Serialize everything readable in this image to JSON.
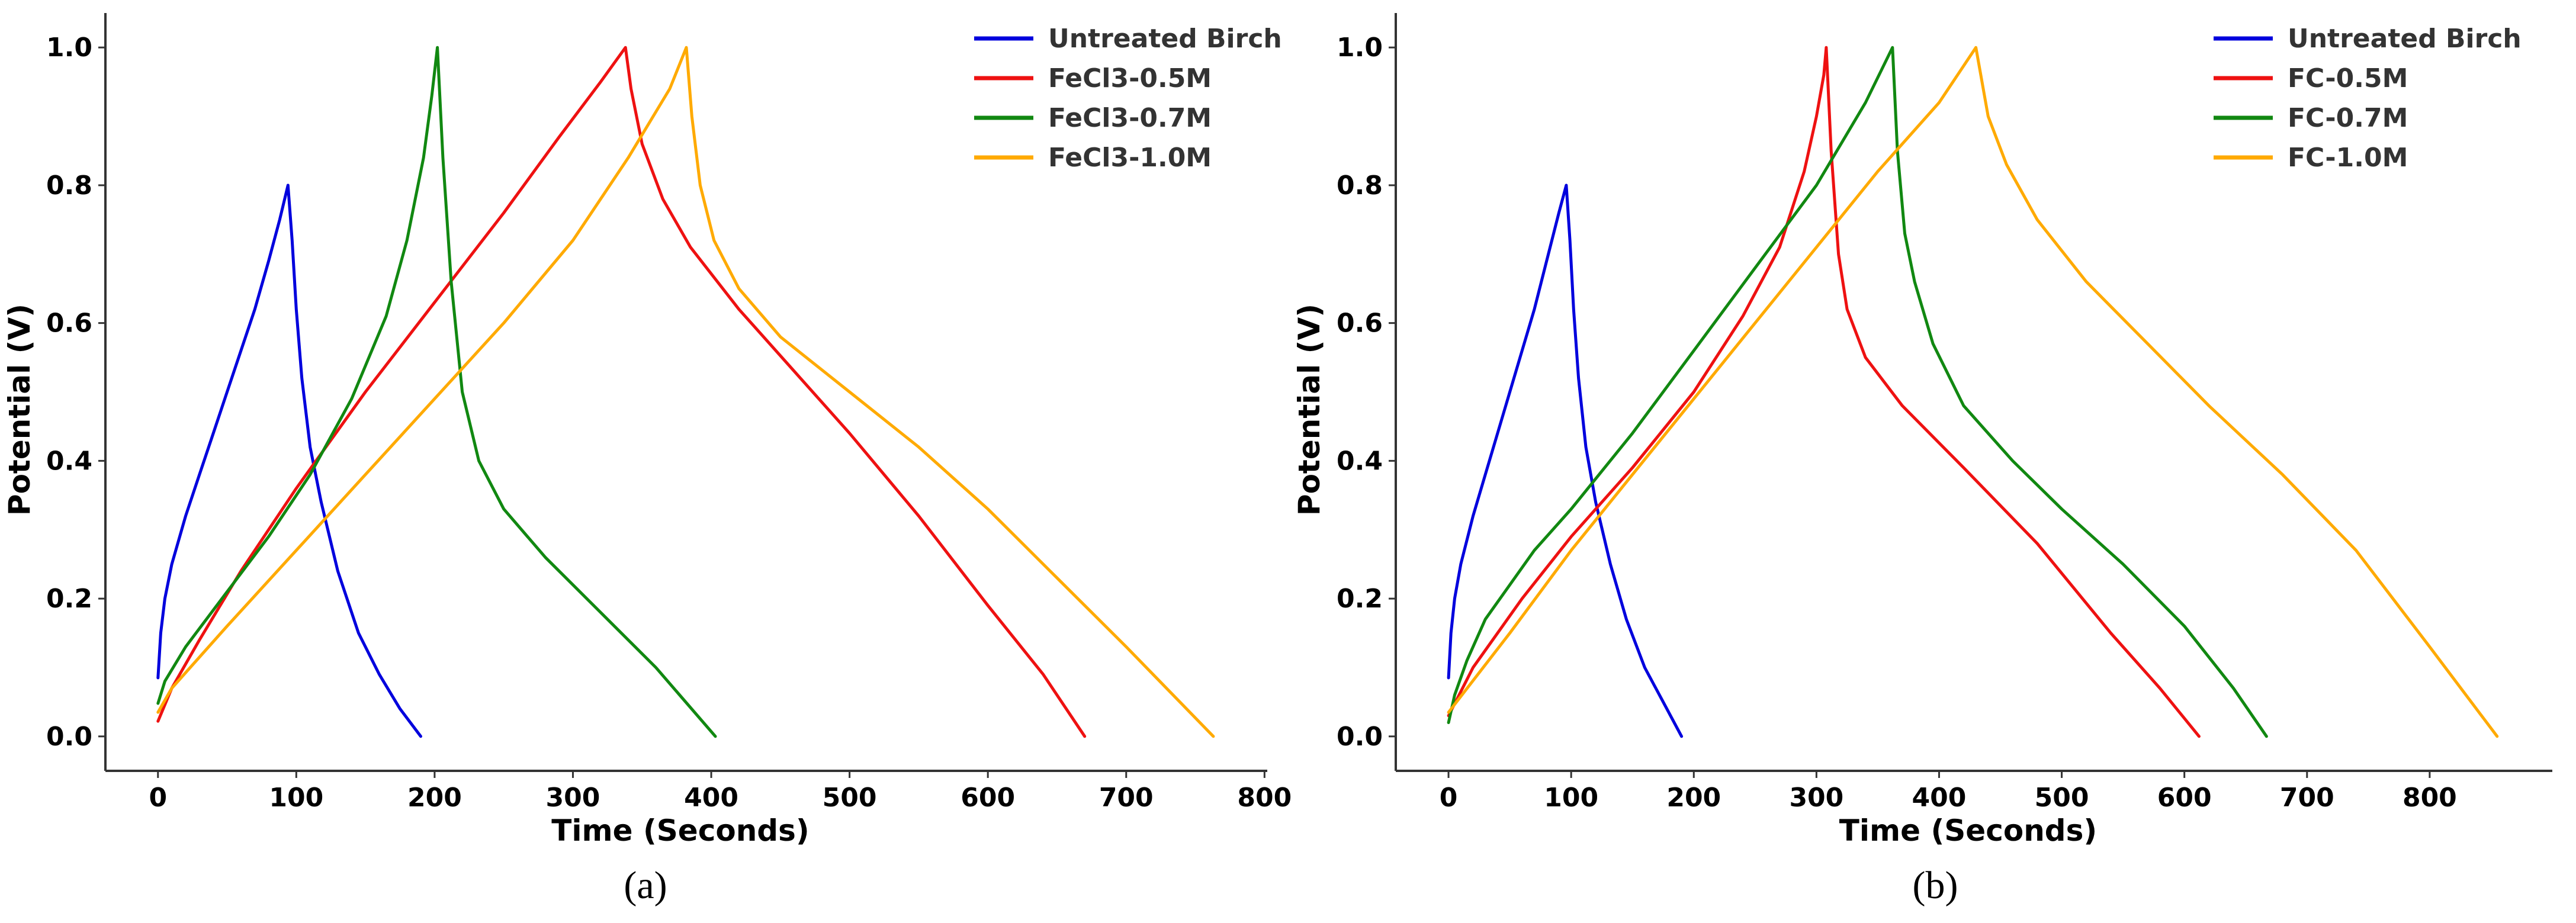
{
  "chart_data": [
    {
      "type": "line",
      "panel_label": "(a)",
      "xlabel": "Time (Seconds)",
      "ylabel": "Potential (V)",
      "xlim": [
        -38,
        802
      ],
      "ylim": [
        -0.05,
        1.05
      ],
      "x_ticks": [
        0,
        100,
        200,
        300,
        400,
        500,
        600,
        700,
        800
      ],
      "y_ticks": [
        0.0,
        0.2,
        0.4,
        0.6,
        0.8,
        1.0
      ],
      "x_tick_labels": [
        "0",
        "100",
        "200",
        "300",
        "400",
        "500",
        "600",
        "700",
        "800"
      ],
      "y_tick_labels": [
        "0.0",
        "0.2",
        "0.4",
        "0.6",
        "0.8",
        "1.0"
      ],
      "grid": false,
      "legend_position": "top-right",
      "series": [
        {
          "name": "Untreated Birch",
          "color": "#0000dd",
          "points": [
            [
              0,
              0.085
            ],
            [
              2,
              0.15
            ],
            [
              5,
              0.2
            ],
            [
              10,
              0.25
            ],
            [
              20,
              0.32
            ],
            [
              30,
              0.38
            ],
            [
              40,
              0.44
            ],
            [
              50,
              0.5
            ],
            [
              60,
              0.56
            ],
            [
              70,
              0.62
            ],
            [
              80,
              0.69
            ],
            [
              88,
              0.75
            ],
            [
              94,
              0.8
            ],
            [
              97,
              0.72
            ],
            [
              100,
              0.62
            ],
            [
              104,
              0.52
            ],
            [
              110,
              0.42
            ],
            [
              118,
              0.34
            ],
            [
              130,
              0.24
            ],
            [
              145,
              0.15
            ],
            [
              160,
              0.09
            ],
            [
              175,
              0.04
            ],
            [
              190,
              0.0
            ]
          ]
        },
        {
          "name": "FeCl3-0.5M",
          "color": "#ee1111",
          "points": [
            [
              0,
              0.022
            ],
            [
              10,
              0.07
            ],
            [
              30,
              0.14
            ],
            [
              60,
              0.24
            ],
            [
              100,
              0.36
            ],
            [
              150,
              0.5
            ],
            [
              200,
              0.63
            ],
            [
              250,
              0.76
            ],
            [
              290,
              0.87
            ],
            [
              320,
              0.95
            ],
            [
              338,
              1.0
            ],
            [
              342,
              0.94
            ],
            [
              350,
              0.86
            ],
            [
              365,
              0.78
            ],
            [
              385,
              0.71
            ],
            [
              420,
              0.62
            ],
            [
              460,
              0.53
            ],
            [
              500,
              0.44
            ],
            [
              550,
              0.32
            ],
            [
              600,
              0.19
            ],
            [
              640,
              0.09
            ],
            [
              670,
              0.0
            ]
          ]
        },
        {
          "name": "FeCl3-0.7M",
          "color": "#118811",
          "points": [
            [
              0,
              0.048
            ],
            [
              5,
              0.08
            ],
            [
              20,
              0.13
            ],
            [
              50,
              0.21
            ],
            [
              80,
              0.29
            ],
            [
              110,
              0.38
            ],
            [
              140,
              0.49
            ],
            [
              165,
              0.61
            ],
            [
              180,
              0.72
            ],
            [
              192,
              0.84
            ],
            [
              198,
              0.93
            ],
            [
              202,
              1.0
            ],
            [
              206,
              0.84
            ],
            [
              212,
              0.66
            ],
            [
              220,
              0.5
            ],
            [
              232,
              0.4
            ],
            [
              250,
              0.33
            ],
            [
              280,
              0.26
            ],
            [
              320,
              0.18
            ],
            [
              360,
              0.1
            ],
            [
              403,
              0.0
            ]
          ]
        },
        {
          "name": "FeCl3-1.0M",
          "color": "#ffaa00",
          "points": [
            [
              0,
              0.035
            ],
            [
              10,
              0.07
            ],
            [
              50,
              0.16
            ],
            [
              100,
              0.27
            ],
            [
              150,
              0.38
            ],
            [
              200,
              0.49
            ],
            [
              250,
              0.6
            ],
            [
              300,
              0.72
            ],
            [
              340,
              0.84
            ],
            [
              370,
              0.94
            ],
            [
              382,
              1.0
            ],
            [
              386,
              0.9
            ],
            [
              392,
              0.8
            ],
            [
              402,
              0.72
            ],
            [
              420,
              0.65
            ],
            [
              450,
              0.58
            ],
            [
              500,
              0.5
            ],
            [
              550,
              0.42
            ],
            [
              600,
              0.33
            ],
            [
              650,
              0.23
            ],
            [
              700,
              0.13
            ],
            [
              763,
              0.0
            ]
          ]
        }
      ]
    },
    {
      "type": "line",
      "panel_label": "(b)",
      "xlabel": "Time (Seconds)",
      "ylabel": "Potential (V)",
      "xlim": [
        -43,
        900
      ],
      "ylim": [
        -0.05,
        1.05
      ],
      "x_ticks": [
        0,
        100,
        200,
        300,
        400,
        500,
        600,
        700,
        800
      ],
      "y_ticks": [
        0.0,
        0.2,
        0.4,
        0.6,
        0.8,
        1.0
      ],
      "x_tick_labels": [
        "0",
        "100",
        "200",
        "300",
        "400",
        "500",
        "600",
        "700",
        "800"
      ],
      "y_tick_labels": [
        "0.0",
        "0.2",
        "0.4",
        "0.6",
        "0.8",
        "1.0"
      ],
      "grid": false,
      "legend_position": "top-right",
      "series": [
        {
          "name": "Untreated Birch",
          "color": "#0000dd",
          "points": [
            [
              0,
              0.085
            ],
            [
              2,
              0.15
            ],
            [
              5,
              0.2
            ],
            [
              10,
              0.25
            ],
            [
              20,
              0.32
            ],
            [
              30,
              0.38
            ],
            [
              40,
              0.44
            ],
            [
              50,
              0.5
            ],
            [
              60,
              0.56
            ],
            [
              70,
              0.62
            ],
            [
              80,
              0.69
            ],
            [
              90,
              0.76
            ],
            [
              96,
              0.8
            ],
            [
              99,
              0.72
            ],
            [
              102,
              0.62
            ],
            [
              106,
              0.52
            ],
            [
              112,
              0.42
            ],
            [
              120,
              0.34
            ],
            [
              132,
              0.25
            ],
            [
              145,
              0.17
            ],
            [
              160,
              0.1
            ],
            [
              175,
              0.05
            ],
            [
              190,
              0.0
            ]
          ]
        },
        {
          "name": "FC-0.5M",
          "color": "#ee1111",
          "points": [
            [
              0,
              0.03
            ],
            [
              20,
              0.1
            ],
            [
              60,
              0.2
            ],
            [
              100,
              0.29
            ],
            [
              150,
              0.39
            ],
            [
              200,
              0.5
            ],
            [
              240,
              0.61
            ],
            [
              270,
              0.71
            ],
            [
              290,
              0.82
            ],
            [
              300,
              0.9
            ],
            [
              306,
              0.96
            ],
            [
              308,
              1.0
            ],
            [
              312,
              0.85
            ],
            [
              318,
              0.7
            ],
            [
              325,
              0.62
            ],
            [
              340,
              0.55
            ],
            [
              370,
              0.48
            ],
            [
              420,
              0.39
            ],
            [
              480,
              0.28
            ],
            [
              540,
              0.15
            ],
            [
              580,
              0.07
            ],
            [
              612,
              0.0
            ]
          ]
        },
        {
          "name": "FC-0.7M",
          "color": "#118811",
          "points": [
            [
              0,
              0.02
            ],
            [
              5,
              0.06
            ],
            [
              15,
              0.11
            ],
            [
              30,
              0.17
            ],
            [
              50,
              0.22
            ],
            [
              70,
              0.27
            ],
            [
              100,
              0.33
            ],
            [
              150,
              0.44
            ],
            [
              200,
              0.56
            ],
            [
              250,
              0.68
            ],
            [
              300,
              0.8
            ],
            [
              340,
              0.92
            ],
            [
              362,
              1.0
            ],
            [
              366,
              0.85
            ],
            [
              372,
              0.73
            ],
            [
              380,
              0.66
            ],
            [
              395,
              0.57
            ],
            [
              420,
              0.48
            ],
            [
              460,
              0.4
            ],
            [
              500,
              0.33
            ],
            [
              550,
              0.25
            ],
            [
              600,
              0.16
            ],
            [
              640,
              0.07
            ],
            [
              667,
              0.0
            ]
          ]
        },
        {
          "name": "FC-1.0M",
          "color": "#ffaa00",
          "points": [
            [
              0,
              0.035
            ],
            [
              50,
              0.15
            ],
            [
              100,
              0.27
            ],
            [
              150,
              0.38
            ],
            [
              200,
              0.49
            ],
            [
              250,
              0.6
            ],
            [
              300,
              0.71
            ],
            [
              350,
              0.82
            ],
            [
              400,
              0.92
            ],
            [
              430,
              1.0
            ],
            [
              434,
              0.96
            ],
            [
              440,
              0.9
            ],
            [
              455,
              0.83
            ],
            [
              480,
              0.75
            ],
            [
              520,
              0.66
            ],
            [
              570,
              0.57
            ],
            [
              620,
              0.48
            ],
            [
              680,
              0.38
            ],
            [
              740,
              0.27
            ],
            [
              800,
              0.13
            ],
            [
              855,
              0.0
            ]
          ]
        }
      ]
    }
  ]
}
